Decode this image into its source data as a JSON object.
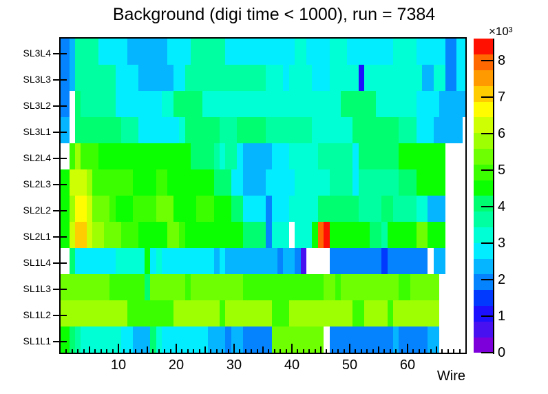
{
  "title": "Background (digi time < 1000), run = 7384",
  "x_axis": {
    "label": "Wire",
    "ticks": [
      10,
      20,
      30,
      40,
      50,
      60
    ],
    "min": 0,
    "max": 70
  },
  "y_axis": {
    "labels_top_to_bottom": [
      "SL3L4",
      "SL3L3",
      "SL3L2",
      "SL3L1",
      "SL2L4",
      "SL2L3",
      "SL2L2",
      "SL2L1",
      "SL1L4",
      "SL1L3",
      "SL1L2",
      "SL1L1"
    ]
  },
  "z_axis": {
    "ticks": [
      0,
      1,
      2,
      3,
      4,
      5,
      6,
      7,
      8
    ],
    "exponent_label": "×10³",
    "min": 0,
    "max": 8.6
  },
  "palette": [
    "#7d00db",
    "#4812f0",
    "#1d10ff",
    "#0239ff",
    "#0583ff",
    "#05b5ff",
    "#02edff",
    "#00ffd5",
    "#00ffa0",
    "#00ff70",
    "#0bff01",
    "#3bff01",
    "#6dff02",
    "#9eff02",
    "#ceff02",
    "#fffc01",
    "#ffcb01",
    "#ff9b01",
    "#ff6700",
    "#ff1000"
  ],
  "frame_color": "#000000",
  "background_color": "#ffffff",
  "chart_data": {
    "type": "heatmap",
    "title": "Background (digi time < 1000), run = 7384",
    "xlabel": "Wire",
    "unit_scale": "×10³",
    "x_range": [
      0,
      70
    ],
    "z_range": [
      0,
      8.6
    ],
    "legend_position": "right-colorbar",
    "grid": false,
    "rows_top_to_bottom": [
      "SL3L4",
      "SL3L3",
      "SL3L2",
      "SL3L1",
      "SL2L4",
      "SL2L3",
      "SL2L2",
      "SL2L1",
      "SL1L4",
      "SL1L3",
      "SL1L2",
      "SL1L1"
    ],
    "segment_format": "[first_wire, last_wire, counts_in_thousands]; uncovered wires are empty (white)",
    "values_by_row": {
      "SL3L4": [
        [
          1,
          1,
          2.0
        ],
        [
          2,
          2,
          2.4
        ],
        [
          3,
          6,
          3.6
        ],
        [
          7,
          11,
          2.9
        ],
        [
          12,
          18,
          2.2
        ],
        [
          19,
          22,
          2.8
        ],
        [
          23,
          28,
          3.6
        ],
        [
          29,
          34,
          3.0
        ],
        [
          35,
          40,
          2.9
        ],
        [
          41,
          42,
          3.3
        ],
        [
          43,
          46,
          2.9
        ],
        [
          47,
          49,
          3.3
        ],
        [
          50,
          57,
          3.0
        ],
        [
          58,
          61,
          3.3
        ],
        [
          62,
          66,
          2.9
        ],
        [
          67,
          68,
          2.0
        ],
        [
          69,
          70,
          2.8
        ]
      ],
      "SL3L3": [
        [
          1,
          1,
          2.0
        ],
        [
          2,
          2,
          2.4
        ],
        [
          3,
          9,
          3.7
        ],
        [
          10,
          13,
          2.9
        ],
        [
          14,
          19,
          2.4
        ],
        [
          20,
          21,
          2.9
        ],
        [
          22,
          35,
          3.5
        ],
        [
          36,
          38,
          3.3
        ],
        [
          39,
          39,
          2.9
        ],
        [
          40,
          43,
          3.3
        ],
        [
          44,
          46,
          2.9
        ],
        [
          47,
          51,
          3.3
        ],
        [
          52,
          52,
          1.1
        ],
        [
          53,
          62,
          3.3
        ],
        [
          63,
          64,
          2.4
        ],
        [
          65,
          66,
          3.3
        ],
        [
          67,
          68,
          2.0
        ],
        [
          69,
          70,
          2.8
        ]
      ],
      "SL3L2": [
        [
          1,
          1,
          2.0
        ],
        [
          3,
          3,
          4.0
        ],
        [
          4,
          9,
          3.6
        ],
        [
          10,
          17,
          2.9
        ],
        [
          18,
          19,
          3.3
        ],
        [
          20,
          24,
          3.9
        ],
        [
          25,
          48,
          3.4
        ],
        [
          49,
          54,
          3.9
        ],
        [
          55,
          61,
          3.4
        ],
        [
          62,
          65,
          2.9
        ],
        [
          66,
          70,
          2.4
        ]
      ],
      "SL3L1": [
        [
          1,
          1,
          2.4
        ],
        [
          3,
          3,
          4.0
        ],
        [
          4,
          10,
          4.1
        ],
        [
          11,
          13,
          3.7
        ],
        [
          14,
          20,
          2.9
        ],
        [
          21,
          21,
          3.3
        ],
        [
          22,
          27,
          4.1
        ],
        [
          28,
          30,
          3.7
        ],
        [
          31,
          35,
          4.1
        ],
        [
          36,
          43,
          3.7
        ],
        [
          44,
          50,
          3.3
        ],
        [
          51,
          58,
          4.1
        ],
        [
          59,
          61,
          3.7
        ],
        [
          62,
          64,
          2.9
        ],
        [
          65,
          69,
          2.4
        ]
      ],
      "SL2L4": [
        [
          2,
          2,
          4.8
        ],
        [
          3,
          3,
          5.6
        ],
        [
          4,
          6,
          5.0
        ],
        [
          7,
          9,
          4.7
        ],
        [
          10,
          11,
          4.5
        ],
        [
          12,
          16,
          4.6
        ],
        [
          17,
          19,
          4.3
        ],
        [
          20,
          22,
          4.5
        ],
        [
          23,
          26,
          4.1
        ],
        [
          27,
          27,
          3.6
        ],
        [
          28,
          28,
          3.2
        ],
        [
          29,
          30,
          3.6
        ],
        [
          31,
          31,
          2.8
        ],
        [
          32,
          36,
          2.3
        ],
        [
          37,
          39,
          2.8
        ],
        [
          40,
          44,
          3.2
        ],
        [
          45,
          50,
          3.6
        ],
        [
          51,
          51,
          2.9
        ],
        [
          52,
          58,
          4.1
        ],
        [
          59,
          61,
          4.5
        ],
        [
          62,
          62,
          4.7
        ],
        [
          63,
          63,
          4.4
        ],
        [
          64,
          66,
          4.6
        ]
      ],
      "SL2L3": [
        [
          1,
          1,
          4.6
        ],
        [
          2,
          4,
          6.2
        ],
        [
          5,
          5,
          5.8
        ],
        [
          6,
          8,
          5.0
        ],
        [
          9,
          12,
          4.8
        ],
        [
          13,
          16,
          4.5
        ],
        [
          17,
          18,
          4.9
        ],
        [
          19,
          26,
          4.5
        ],
        [
          27,
          29,
          4.1
        ],
        [
          30,
          31,
          2.8
        ],
        [
          32,
          35,
          2.3
        ],
        [
          36,
          40,
          2.9
        ],
        [
          41,
          46,
          3.3
        ],
        [
          47,
          50,
          3.7
        ],
        [
          51,
          51,
          2.9
        ],
        [
          52,
          58,
          3.7
        ],
        [
          59,
          61,
          4.2
        ],
        [
          62,
          64,
          4.5
        ],
        [
          65,
          66,
          4.7
        ]
      ],
      "SL2L2": [
        [
          1,
          1,
          4.6
        ],
        [
          2,
          2,
          5.7
        ],
        [
          3,
          4,
          6.8
        ],
        [
          5,
          5,
          6.2
        ],
        [
          6,
          8,
          5.4
        ],
        [
          9,
          9,
          5.0
        ],
        [
          10,
          12,
          4.7
        ],
        [
          13,
          16,
          4.8
        ],
        [
          17,
          19,
          5.3
        ],
        [
          20,
          23,
          4.7
        ],
        [
          24,
          26,
          5.0
        ],
        [
          27,
          29,
          4.5
        ],
        [
          30,
          31,
          4.2
        ],
        [
          32,
          35,
          2.9
        ],
        [
          36,
          36,
          1.9
        ],
        [
          37,
          39,
          2.9
        ],
        [
          40,
          44,
          3.3
        ],
        [
          45,
          51,
          4.2
        ],
        [
          52,
          55,
          3.7
        ],
        [
          56,
          57,
          4.2
        ],
        [
          58,
          61,
          3.7
        ],
        [
          62,
          63,
          3.2
        ],
        [
          64,
          66,
          2.4
        ]
      ],
      "SL2L1": [
        [
          1,
          1,
          4.6
        ],
        [
          2,
          2,
          6.1
        ],
        [
          3,
          4,
          7.0
        ],
        [
          5,
          5,
          6.4
        ],
        [
          6,
          7,
          6.0
        ],
        [
          8,
          10,
          5.5
        ],
        [
          11,
          13,
          5.0
        ],
        [
          14,
          18,
          4.7
        ],
        [
          19,
          20,
          5.2
        ],
        [
          21,
          21,
          4.8
        ],
        [
          22,
          25,
          4.5
        ],
        [
          26,
          31,
          4.3
        ],
        [
          32,
          35,
          4.1
        ],
        [
          36,
          36,
          1.9
        ],
        [
          37,
          39,
          3.2
        ],
        [
          41,
          43,
          3.4
        ],
        [
          44,
          44,
          4.6
        ],
        [
          45,
          45,
          7.9
        ],
        [
          46,
          46,
          8.4
        ],
        [
          47,
          51,
          4.6
        ],
        [
          52,
          53,
          4.4
        ],
        [
          54,
          55,
          4.2
        ],
        [
          56,
          56,
          3.7
        ],
        [
          57,
          61,
          4.5
        ],
        [
          62,
          63,
          5.5
        ],
        [
          64,
          66,
          4.4
        ]
      ],
      "SL1L4": [
        [
          2,
          2,
          4.2
        ],
        [
          3,
          9,
          2.9
        ],
        [
          10,
          14,
          3.2
        ],
        [
          15,
          15,
          4.4
        ],
        [
          16,
          16,
          2.9
        ],
        [
          17,
          17,
          3.2
        ],
        [
          18,
          26,
          2.9
        ],
        [
          27,
          27,
          2.4
        ],
        [
          28,
          28,
          2.9
        ],
        [
          29,
          36,
          2.3
        ],
        [
          37,
          37,
          2.4
        ],
        [
          38,
          38,
          2.0
        ],
        [
          39,
          40,
          2.4
        ],
        [
          41,
          41,
          1.9
        ],
        [
          42,
          42,
          0.6
        ],
        [
          47,
          55,
          1.9
        ],
        [
          56,
          56,
          1.4
        ],
        [
          57,
          63,
          1.9
        ],
        [
          65,
          66,
          2.4
        ]
      ],
      "SL1L3": [
        [
          1,
          8,
          5.4
        ],
        [
          9,
          14,
          4.9
        ],
        [
          15,
          15,
          4.0
        ],
        [
          16,
          21,
          5.4
        ],
        [
          22,
          22,
          4.9
        ],
        [
          23,
          31,
          5.4
        ],
        [
          32,
          45,
          4.9
        ],
        [
          46,
          47,
          5.4
        ],
        [
          48,
          48,
          4.9
        ],
        [
          49,
          58,
          5.4
        ],
        [
          59,
          60,
          4.9
        ],
        [
          61,
          65,
          5.4
        ]
      ],
      "SL1L2": [
        [
          1,
          1,
          5.7
        ],
        [
          2,
          2,
          6.0
        ],
        [
          3,
          4,
          5.7
        ],
        [
          5,
          6,
          6.0
        ],
        [
          7,
          11,
          5.7
        ],
        [
          12,
          19,
          5.0
        ],
        [
          20,
          27,
          5.7
        ],
        [
          28,
          28,
          5.0
        ],
        [
          29,
          36,
          5.7
        ],
        [
          37,
          39,
          5.0
        ],
        [
          40,
          50,
          5.6
        ],
        [
          51,
          52,
          5.0
        ],
        [
          53,
          56,
          5.6
        ],
        [
          57,
          57,
          5.0
        ],
        [
          58,
          65,
          5.6
        ]
      ],
      "SL1L1": [
        [
          1,
          1,
          4.6
        ],
        [
          2,
          2,
          4.1
        ],
        [
          3,
          3,
          3.7
        ],
        [
          4,
          10,
          3.3
        ],
        [
          11,
          12,
          3.0
        ],
        [
          13,
          15,
          2.4
        ],
        [
          16,
          16,
          4.0
        ],
        [
          17,
          17,
          3.3
        ],
        [
          18,
          25,
          2.8
        ],
        [
          26,
          28,
          2.4
        ],
        [
          29,
          29,
          2.0
        ],
        [
          30,
          31,
          2.4
        ],
        [
          32,
          36,
          2.0
        ],
        [
          37,
          45,
          5.3
        ],
        [
          47,
          57,
          1.9
        ],
        [
          58,
          58,
          2.4
        ],
        [
          59,
          63,
          1.9
        ],
        [
          64,
          65,
          2.4
        ]
      ]
    }
  }
}
